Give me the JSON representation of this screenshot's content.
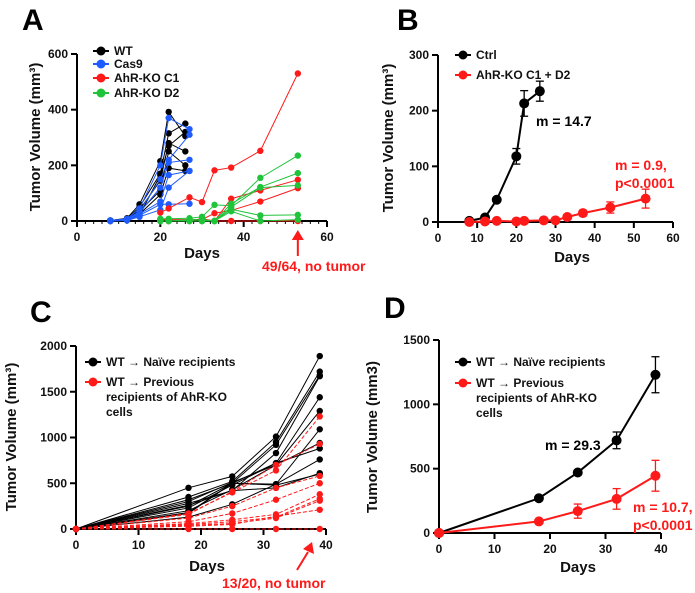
{
  "colors": {
    "black": "#000000",
    "blue": "#1f5cff",
    "red": "#ff1a1a",
    "green": "#1fc43a"
  },
  "chart_data": [
    {
      "panel": "A",
      "type": "line",
      "xlabel": "Days",
      "ylabel": "Tumor Volume (mm³)",
      "xlim": [
        0,
        60
      ],
      "ylim": [
        0,
        600
      ],
      "xticks": [
        0,
        20,
        40,
        60
      ],
      "yticks": [
        0,
        200,
        400,
        600
      ],
      "annotation": "49/64, no tumor",
      "annotation_x": 53,
      "series": [
        {
          "name": "WT",
          "color": "black",
          "x": [
            8,
            12,
            15,
            20,
            22,
            26
          ],
          "lines": [
            [
              2,
              10,
              60,
              215,
              392,
              305
            ],
            [
              2,
              8,
              50,
              170,
              315,
              350
            ],
            [
              1,
              6,
              40,
              145,
              280,
              250
            ],
            [
              1,
              5,
              35,
              110,
              250,
              200
            ],
            [
              0,
              4,
              25,
              95,
              190,
              180
            ],
            [
              0,
              3,
              20,
              165,
              270,
              320
            ]
          ]
        },
        {
          "name": "Cas9",
          "color": "blue",
          "x": [
            8,
            12,
            15,
            20,
            22,
            27
          ],
          "lines": [
            [
              2,
              8,
              45,
              200,
              370,
              330
            ],
            [
              1,
              6,
              35,
              150,
              220,
              310
            ],
            [
              1,
              5,
              30,
              120,
              210,
              220
            ],
            [
              0,
              4,
              25,
              70,
              165,
              180
            ],
            [
              0,
              3,
              20,
              60,
              60,
              62
            ],
            [
              0,
              2,
              15,
              40,
              120,
              180
            ]
          ]
        },
        {
          "name": "AhR-KO C1",
          "color": "red",
          "x": [
            20,
            22,
            27,
            30,
            33,
            37,
            44,
            53
          ],
          "lines": [
            [
              30,
              45,
              85,
              68,
              182,
              192,
              252,
              530
            ],
            [
              5,
              5,
              5,
              5,
              28,
              38,
              70,
              118
            ],
            [
              0,
              0,
              0,
              0,
              0,
              80,
              110,
              148
            ],
            [
              0,
              0,
              2,
              8,
              0,
              0,
              0,
              0
            ]
          ]
        },
        {
          "name": "AhR-KO D2",
          "color": "green",
          "x": [
            20,
            22,
            27,
            30,
            33,
            37,
            44,
            53
          ],
          "lines": [
            [
              8,
              8,
              10,
              15,
              58,
              55,
              155,
              235
            ],
            [
              0,
              0,
              5,
              5,
              0,
              62,
              122,
              172
            ],
            [
              0,
              0,
              0,
              0,
              0,
              42,
              20,
              22
            ],
            [
              0,
              0,
              0,
              0,
              0,
              50,
              120,
              128
            ],
            [
              0,
              0,
              0,
              0,
              0,
              35,
              0,
              5
            ]
          ]
        }
      ]
    },
    {
      "panel": "B",
      "type": "line",
      "xlabel": "Days",
      "ylabel": "Tumor Volume (mm³)",
      "xlim": [
        0,
        60
      ],
      "ylim": [
        0,
        300
      ],
      "xticks": [
        0,
        10,
        20,
        30,
        40,
        50,
        60
      ],
      "yticks": [
        0,
        100,
        200,
        300
      ],
      "series": [
        {
          "name": "Ctrl",
          "color": "black",
          "x": [
            8,
            12,
            15,
            20,
            22,
            26
          ],
          "y": [
            2,
            8,
            40,
            118,
            213,
            235
          ],
          "err": [
            1,
            2,
            3,
            14,
            23,
            18
          ]
        },
        {
          "name": "AhR-KO C1 + D2",
          "color": "red",
          "x": [
            8,
            12,
            15,
            20,
            22,
            27,
            30,
            33,
            37,
            44,
            53
          ],
          "y": [
            0,
            1,
            2,
            1,
            2,
            3,
            3,
            9,
            16,
            26,
            42
          ],
          "err": [
            0,
            0,
            1,
            1,
            1,
            2,
            2,
            4,
            5,
            10,
            17
          ]
        }
      ],
      "annotations": [
        "m = 14.7",
        "m = 0.9,",
        "p<0.0001"
      ]
    },
    {
      "panel": "C",
      "type": "line",
      "xlabel": "Days",
      "ylabel": "Tumor Volume (mm³)",
      "xlim": [
        0,
        40
      ],
      "ylim": [
        0,
        2000
      ],
      "xticks": [
        0,
        10,
        20,
        30,
        40
      ],
      "yticks": [
        0,
        500,
        1000,
        1500,
        2000
      ],
      "annotation": "13/20, no tumor",
      "series": [
        {
          "name": "WT → Naïve recipients",
          "legend_lines": [
            "WT → Naïve recipients"
          ],
          "color": "black",
          "dashed": false,
          "x": [
            0,
            18,
            25,
            32,
            39
          ],
          "lines": [
            [
              0,
              450,
              575,
              1010,
              1890
            ],
            [
              0,
              350,
              520,
              950,
              1720
            ],
            [
              0,
              320,
              500,
              920,
              1680
            ],
            [
              0,
              280,
              420,
              830,
              1670
            ],
            [
              0,
              250,
              500,
              720,
              1440
            ],
            [
              0,
              200,
              430,
              700,
              1290
            ],
            [
              0,
              180,
              500,
              490,
              1090
            ],
            [
              0,
              300,
              510,
              700,
              940
            ],
            [
              0,
              230,
              480,
              720,
              880
            ],
            [
              0,
              130,
              270,
              490,
              760
            ],
            [
              0,
              260,
              420,
              450,
              610
            ],
            [
              0,
              170,
              500,
              480,
              600
            ]
          ]
        },
        {
          "name": "WT → Previous recipients of AhR-KO cells",
          "legend_lines": [
            "WT → Previous",
            "recipients of AhR-KO",
            "cells"
          ],
          "color": "red",
          "dashed": true,
          "x": [
            0,
            18,
            25,
            32,
            39
          ],
          "lines": [
            [
              0,
              170,
              400,
              640,
              1230
            ],
            [
              0,
              160,
              410,
              700,
              930
            ],
            [
              0,
              120,
              250,
              450,
              580
            ],
            [
              0,
              80,
              170,
              320,
              500
            ],
            [
              0,
              60,
              100,
              160,
              380
            ],
            [
              0,
              50,
              80,
              130,
              330
            ],
            [
              0,
              40,
              60,
              120,
              310
            ],
            [
              0,
              30,
              50,
              140,
              210
            ],
            [
              0,
              0,
              0,
              0,
              0
            ]
          ]
        }
      ]
    },
    {
      "panel": "D",
      "type": "line",
      "xlabel": "Days",
      "ylabel": "Tumor Volume (mm3)",
      "xlim": [
        0,
        40
      ],
      "ylim": [
        0,
        1500
      ],
      "xticks": [
        0,
        10,
        20,
        30,
        40
      ],
      "yticks": [
        0,
        500,
        1000,
        1500
      ],
      "series": [
        {
          "name": "WT → Naïve recipients",
          "legend_lines": [
            "WT → Naïve recipients"
          ],
          "color": "black",
          "x": [
            0,
            18,
            25,
            32,
            39
          ],
          "y": [
            0,
            270,
            470,
            720,
            1230
          ],
          "err": [
            0,
            0,
            0,
            65,
            140
          ]
        },
        {
          "name": "WT → Previous recipients of AhR-KO cells",
          "legend_lines": [
            "WT → Previous",
            "recipients of AhR-KO",
            "cells"
          ],
          "color": "red",
          "x": [
            0,
            18,
            25,
            32,
            39
          ],
          "y": [
            0,
            90,
            170,
            265,
            445
          ],
          "err": [
            0,
            0,
            55,
            80,
            120
          ]
        }
      ],
      "annotations": [
        "m = 29.3",
        "m = 10.7,",
        "p<0.0001"
      ]
    }
  ]
}
